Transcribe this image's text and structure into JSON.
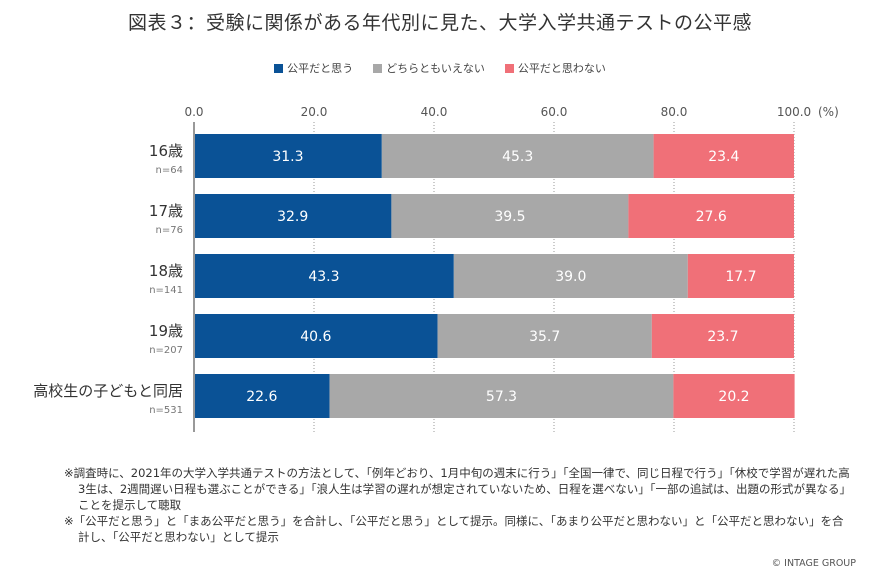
{
  "chart_data": {
    "type": "bar",
    "orientation": "horizontal",
    "stacked": true,
    "title": "図表３：受験に関係がある年代別に見た、大学入学共通テストの公平感",
    "xlabel": "",
    "ylabel": "",
    "unit_label": "(%)",
    "xlim": [
      0,
      100
    ],
    "x_ticks": [
      "0.0",
      "20.0",
      "40.0",
      "60.0",
      "80.0",
      "100.0"
    ],
    "x_tick_values": [
      0,
      20,
      40,
      60,
      80,
      100
    ],
    "grid": true,
    "legend_position": "top-center",
    "categories": [
      "16歳",
      "17歳",
      "18歳",
      "19歳",
      "高校生の子どもと同居"
    ],
    "sample_sizes": [
      "n=64",
      "n=76",
      "n=141",
      "n=207",
      "n=531"
    ],
    "series": [
      {
        "name": "公平だと思う",
        "color": "#0A5296",
        "values": [
          31.3,
          32.9,
          43.3,
          40.6,
          22.6
        ],
        "labels": [
          "31.3",
          "32.9",
          "43.3",
          "40.6",
          "22.6"
        ]
      },
      {
        "name": "どちらともいえない",
        "color": "#A8A8A8",
        "values": [
          45.3,
          39.5,
          39.0,
          35.7,
          57.3
        ],
        "labels": [
          "45.3",
          "39.5",
          "39.0",
          "35.7",
          "57.3"
        ]
      },
      {
        "name": "公平だと思わない",
        "color": "#F07078",
        "values": [
          23.4,
          27.6,
          17.7,
          23.7,
          20.2
        ],
        "labels": [
          "23.4",
          "27.6",
          "17.7",
          "23.7",
          "20.2"
        ]
      }
    ]
  },
  "notes": [
    "※調査時に、2021年の大学入学共通テストの方法として、「例年どおり、1月中旬の週末に行う」「全国一律で、同じ日程で行う」「休校で学習が遅れた高3生は、2週間遅い日程も選ぶことができる」「浪人生は学習の遅れが想定されていないため、日程を選べない」「一部の追試は、出題の形式が異なる」ことを提示して聴取",
    "※「公平だと思う」と「まあ公平だと思う」を合計し、「公平だと思う」として提示。同様に、「あまり公平だと思わない」と「公平だと思わない」を合計し、「公平だと思わない」として提示"
  ],
  "credit": "© INTAGE GROUP"
}
